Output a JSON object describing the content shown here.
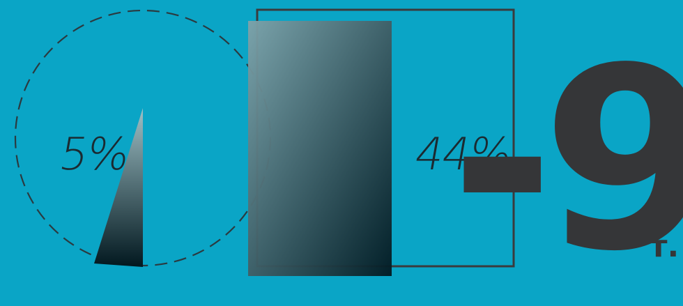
{
  "pie": {
    "label": "5%",
    "value_percent": 5
  },
  "square": {
    "label": "44%",
    "value_percent": 44
  },
  "big_value": "-9",
  "unit": "т.",
  "colors": {
    "background": "#0aa5c6",
    "dark": "#353638",
    "outline": "#3a3b3d",
    "gradient_top": "#7fa3aa",
    "gradient_bottom": "#022029"
  }
}
